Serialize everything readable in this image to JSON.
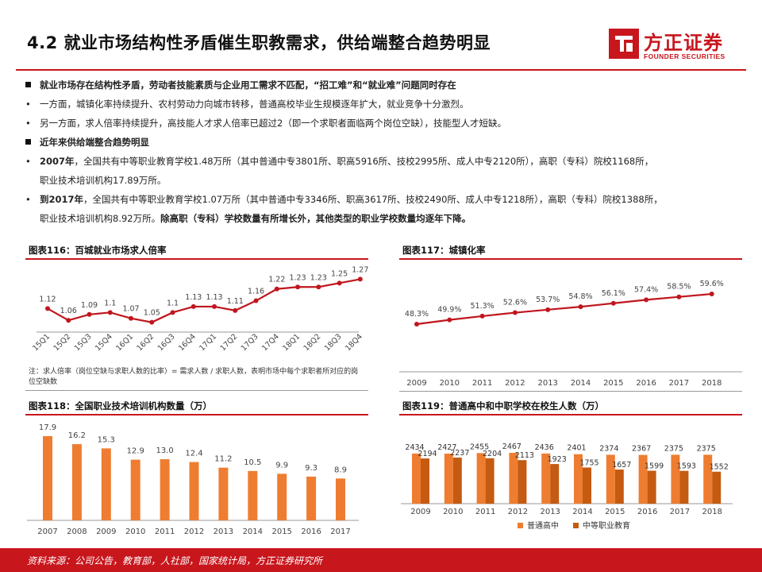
{
  "header": {
    "title": "4.2 就业市场结构性矛盾催生职教需求，供给端整合趋势明显",
    "logo_cn": "方正证券",
    "logo_en": "FOUNDER SECURITIES"
  },
  "bullets": {
    "b1": "就业市场存在结构性矛盾，劳动者技能素质与企业用工需求不匹配，“招工难”和“就业难”问题同时存在",
    "b2": "一方面，城镇化率持续提升、农村劳动力向城市转移，普通高校毕业生规模逐年扩大，就业竞争十分激烈。",
    "b3": "另一方面，求人倍率持续提升，高技能人才求人倍率已超过2（即一个求职者面临两个岗位空缺），技能型人才短缺。",
    "b4": "近年来供给端整合趋势明显",
    "b5_bold": "2007年",
    "b5_rest": "，全国共有中等职业教育学校1.48万所（其中普通中专3801所、职高5916所、技校2995所、成人中专2120所），高职（专科）院校1168所，",
    "b5_cont": "职业技术培训机构17.89万所。",
    "b6_bold": "到2017年",
    "b6_rest": "，全国共有中等职业教育学校1.07万所（其中普通中专3346所、职高3617所、技校2490所、成人中专1218所），高职（专科）院校1388所，",
    "b6_cont_plain": "职业技术培训机构8.92万所。",
    "b6_cont_bold": "除高职（专科）学校数量有所增长外，其他类型的职业学校数量均逐年下降。",
    "bullet_dot": "•"
  },
  "panels": {
    "p116": "图表116：百城就业市场求人倍率",
    "p117": "图表117：城镇化率",
    "p118": "图表118：全国职业技术培训机构数量（万）",
    "p119": "图表119：普通高中和中职学校在校生人数（万）",
    "note116": "注：求人倍率（岗位空缺与求职人数的比率）= 需求人数 / 求职人数，表明市场中每个求职者所对应的岗位空缺数"
  },
  "footer": {
    "source": "资料来源：公司公告，教育部，人社部，国家统计局，方正证券研究所"
  },
  "colors": {
    "brand_red": "#c8161d",
    "line_red": "#c0161e",
    "bar_orange": "#ee7d31",
    "bar_dark": "#c55a11",
    "bar_light": "#f4a460"
  },
  "chart_data": [
    {
      "id": "c116",
      "type": "line",
      "title": "图表116：百城就业市场求人倍率",
      "categories": [
        "15Q1",
        "15Q2",
        "15Q3",
        "15Q4",
        "16Q1",
        "16Q2",
        "16Q3",
        "16Q4",
        "17Q1",
        "17Q2",
        "17Q3",
        "17Q4",
        "18Q1",
        "18Q2",
        "18Q3",
        "18Q4"
      ],
      "values": [
        1.12,
        1.06,
        1.09,
        1.1,
        1.07,
        1.05,
        1.1,
        1.13,
        1.13,
        1.11,
        1.16,
        1.22,
        1.23,
        1.23,
        1.25,
        1.27
      ],
      "labels": [
        "1.12",
        "1.06",
        "1.09",
        "1.1",
        "1.07",
        "1.05",
        "1.1",
        "1.13",
        "1.13",
        "1.11",
        "1.16",
        "1.22",
        "1.23",
        "1.23",
        "1.25",
        "1.27"
      ],
      "ylim": [
        1.0,
        1.3
      ],
      "grid": false
    },
    {
      "id": "c117",
      "type": "line",
      "title": "图表117：城镇化率",
      "categories": [
        "2009",
        "2010",
        "2011",
        "2012",
        "2013",
        "2014",
        "2015",
        "2016",
        "2017",
        "2018"
      ],
      "values": [
        48.3,
        49.9,
        51.3,
        52.6,
        53.7,
        54.8,
        56.1,
        57.4,
        58.5,
        59.6
      ],
      "labels": [
        "48.3%",
        "49.9%",
        "51.3%",
        "52.6%",
        "53.7%",
        "54.8%",
        "56.1%",
        "57.4%",
        "58.5%",
        "59.6%"
      ],
      "ylim": [
        40,
        65
      ],
      "grid": false
    },
    {
      "id": "c118",
      "type": "bar",
      "title": "图表118：全国职业技术培训机构数量（万）",
      "categories": [
        "2007",
        "2008",
        "2009",
        "2010",
        "2011",
        "2012",
        "2013",
        "2014",
        "2015",
        "2016",
        "2017"
      ],
      "values": [
        17.9,
        16.2,
        15.3,
        12.9,
        13.0,
        12.4,
        11.2,
        10.5,
        9.9,
        9.3,
        8.9
      ],
      "labels": [
        "17.9",
        "16.2",
        "15.3",
        "12.9",
        "13.0",
        "12.4",
        "11.2",
        "10.5",
        "9.9",
        "9.3",
        "8.9"
      ],
      "ylim": [
        0,
        20
      ],
      "grid": false
    },
    {
      "id": "c119",
      "type": "bar",
      "title": "图表119：普通高中和中职学校在校生人数（万）",
      "categories": [
        "2009",
        "2010",
        "2011",
        "2012",
        "2013",
        "2014",
        "2015",
        "2016",
        "2017",
        "2018"
      ],
      "series": [
        {
          "name": "普通高中",
          "values": [
            2434,
            2427,
            2455,
            2467,
            2436,
            2401,
            2374,
            2367,
            2375,
            2375
          ]
        },
        {
          "name": "中等职业教育",
          "values": [
            2194,
            2237,
            2204,
            2113,
            1923,
            1755,
            1657,
            1599,
            1593,
            1552
          ]
        }
      ],
      "ylim": [
        0,
        3000
      ],
      "legend": "bottom",
      "grid": false
    }
  ]
}
